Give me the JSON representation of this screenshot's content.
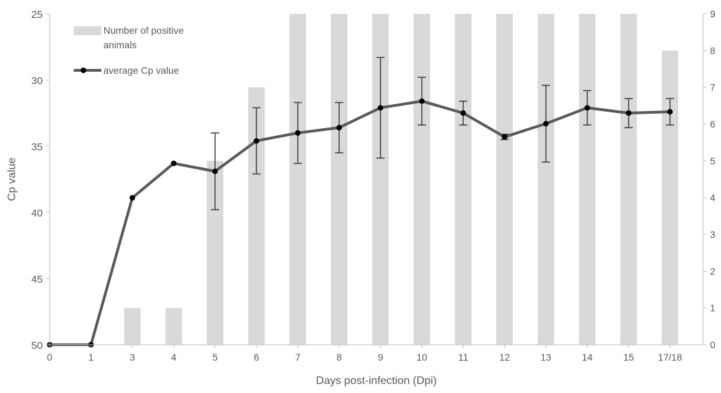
{
  "chart_data": {
    "type": "bar+line",
    "categories": [
      "0",
      "1",
      "3",
      "4",
      "5",
      "6",
      "7",
      "8",
      "9",
      "10",
      "11",
      "12",
      "13",
      "14",
      "15",
      "17/18"
    ],
    "xlabel": "Days post-infection (Dpi)",
    "ylabel": "Cp value",
    "y_left": {
      "ticks": [
        25,
        30,
        35,
        40,
        45,
        50
      ],
      "range": [
        50,
        25
      ],
      "inverted": true
    },
    "y_right": {
      "ticks": [
        0,
        1,
        2,
        3,
        4,
        5,
        6,
        7,
        8,
        9
      ],
      "range": [
        0,
        9
      ]
    },
    "grid": false,
    "legend_position": "top-left",
    "series": [
      {
        "name": "Number of positive animals",
        "type": "bar",
        "axis": "right",
        "color": "#d9d9d9",
        "values": [
          0,
          0,
          1,
          1,
          5,
          7,
          9,
          9,
          9,
          9,
          9,
          9,
          9,
          9,
          9,
          8
        ]
      },
      {
        "name": "average Cp value",
        "type": "line",
        "axis": "left",
        "color": "#595959",
        "values": [
          50,
          50,
          38.9,
          36.3,
          36.9,
          34.6,
          34.0,
          33.6,
          32.1,
          31.6,
          32.5,
          34.3,
          33.3,
          32.1,
          32.5,
          32.4
        ],
        "error": [
          null,
          null,
          null,
          null,
          2.9,
          2.5,
          2.3,
          1.9,
          3.8,
          1.8,
          0.9,
          0.2,
          2.9,
          1.3,
          1.1,
          1.0
        ]
      }
    ]
  }
}
